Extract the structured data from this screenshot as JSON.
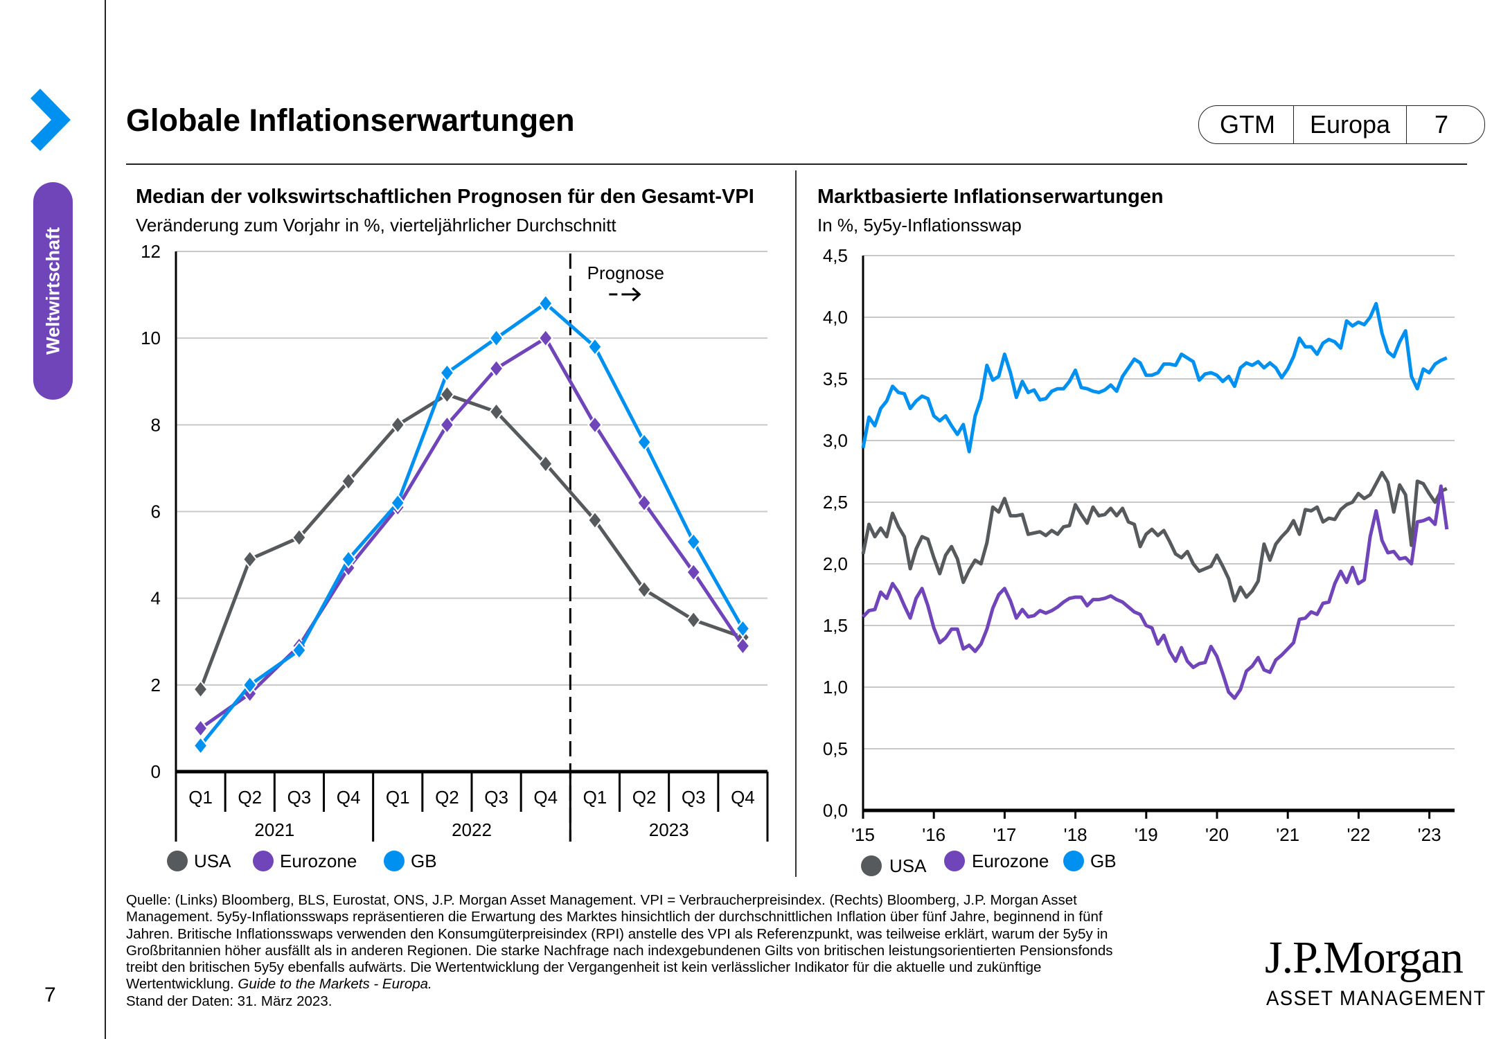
{
  "section_tab": "Weltwirtschaft",
  "page": {
    "title": "Globale Inflationserwartungen",
    "badge": [
      "GTM",
      "Europa",
      "7"
    ],
    "page_number": "7"
  },
  "colors": {
    "usa": "#575a5d",
    "eurozone": "#6f45b9",
    "gb": "#0091f0",
    "accent_chevron": "#0091f0",
    "section_tab": "#6f45b9"
  },
  "chart_data": [
    {
      "type": "line",
      "title": "Median der volkswirtschaftlichen Prognosen für den Gesamt-VPI",
      "subtitle": "Veränderung zum Vorjahr in %, vierteljährlicher Durchschnitt",
      "xlabel": "",
      "ylabel": "",
      "ylim": [
        0,
        12
      ],
      "yticks": [
        "0",
        "2",
        "4",
        "6",
        "8",
        "10",
        "12"
      ],
      "grid": true,
      "categories": [
        "Q1",
        "Q2",
        "Q3",
        "Q4",
        "Q1",
        "Q2",
        "Q3",
        "Q4",
        "Q1",
        "Q2",
        "Q3",
        "Q4"
      ],
      "year_groups": [
        {
          "label": "2021",
          "span": 4
        },
        {
          "label": "2022",
          "span": 4
        },
        {
          "label": "2023",
          "span": 4
        }
      ],
      "forecast_marker": {
        "after_index": 7,
        "label": "Prognose",
        "arrow": "- ->"
      },
      "marker": "diamond",
      "series": [
        {
          "name": "USA",
          "color_key": "usa",
          "values": [
            1.9,
            4.9,
            5.4,
            6.7,
            8.0,
            8.7,
            8.3,
            7.1,
            5.8,
            4.2,
            3.5,
            3.1
          ]
        },
        {
          "name": "Eurozone",
          "color_key": "eurozone",
          "values": [
            1.0,
            1.8,
            2.9,
            4.7,
            6.1,
            8.0,
            9.3,
            10.0,
            8.0,
            6.2,
            4.6,
            2.9
          ]
        },
        {
          "name": "GB",
          "color_key": "gb",
          "values": [
            0.6,
            2.0,
            2.8,
            4.9,
            6.2,
            9.2,
            10.0,
            10.8,
            9.8,
            7.6,
            5.3,
            3.3
          ]
        }
      ],
      "legend": [
        "USA",
        "Eurozone",
        "GB"
      ],
      "legend_position": "bottom-left"
    },
    {
      "type": "line",
      "title": "Marktbasierte Inflationserwartungen",
      "subtitle": "In %, 5y5y-Inflationsswap",
      "xlabel": "",
      "ylabel": "",
      "ylim": [
        0,
        4.5
      ],
      "yticks": [
        "0,0",
        "0,5",
        "1,0",
        "1,5",
        "2,0",
        "2,5",
        "3,0",
        "3,5",
        "4,0",
        "4,5"
      ],
      "xlim": [
        2015.0,
        2023.33
      ],
      "xticks": [
        "'15",
        "'16",
        "'17",
        "'18",
        "'19",
        "'20",
        "'21",
        "'22",
        "'23"
      ],
      "grid": true,
      "x_start": 2015.0,
      "x_step_years": 0.0833,
      "series": [
        {
          "name": "USA",
          "color_key": "usa",
          "values": [
            2.08,
            2.32,
            2.22,
            2.29,
            2.22,
            2.41,
            2.3,
            2.22,
            1.96,
            2.12,
            2.22,
            2.2,
            2.05,
            1.92,
            2.07,
            2.14,
            2.04,
            1.85,
            1.95,
            2.03,
            2.0,
            2.17,
            2.46,
            2.42,
            2.53,
            2.39,
            2.39,
            2.4,
            2.24,
            2.25,
            2.26,
            2.23,
            2.27,
            2.24,
            2.3,
            2.31,
            2.48,
            2.4,
            2.33,
            2.46,
            2.39,
            2.4,
            2.45,
            2.39,
            2.45,
            2.34,
            2.32,
            2.14,
            2.24,
            2.28,
            2.23,
            2.27,
            2.18,
            2.08,
            2.05,
            2.1,
            2.0,
            1.94,
            1.96,
            1.98,
            2.07,
            1.98,
            1.88,
            1.7,
            1.81,
            1.73,
            1.78,
            1.86,
            2.16,
            2.03,
            2.16,
            2.22,
            2.27,
            2.35,
            2.24,
            2.44,
            2.43,
            2.46,
            2.34,
            2.37,
            2.36,
            2.44,
            2.48,
            2.5,
            2.57,
            2.53,
            2.56,
            2.65,
            2.74,
            2.66,
            2.42,
            2.64,
            2.56,
            2.15,
            2.67,
            2.65,
            2.57,
            2.5,
            2.59,
            2.61
          ]
        },
        {
          "name": "Eurozone",
          "color_key": "eurozone",
          "values": [
            1.57,
            1.62,
            1.63,
            1.77,
            1.72,
            1.84,
            1.77,
            1.66,
            1.56,
            1.72,
            1.8,
            1.66,
            1.48,
            1.36,
            1.4,
            1.47,
            1.47,
            1.31,
            1.34,
            1.29,
            1.35,
            1.47,
            1.64,
            1.75,
            1.8,
            1.7,
            1.56,
            1.63,
            1.57,
            1.58,
            1.62,
            1.6,
            1.62,
            1.65,
            1.69,
            1.72,
            1.73,
            1.73,
            1.66,
            1.71,
            1.71,
            1.72,
            1.74,
            1.71,
            1.69,
            1.65,
            1.61,
            1.59,
            1.5,
            1.48,
            1.35,
            1.42,
            1.29,
            1.21,
            1.32,
            1.21,
            1.16,
            1.19,
            1.2,
            1.33,
            1.25,
            1.11,
            0.96,
            0.91,
            0.98,
            1.13,
            1.17,
            1.24,
            1.14,
            1.12,
            1.22,
            1.26,
            1.31,
            1.36,
            1.55,
            1.56,
            1.61,
            1.59,
            1.68,
            1.69,
            1.84,
            1.94,
            1.85,
            1.97,
            1.84,
            1.87,
            2.22,
            2.43,
            2.19,
            2.09,
            2.1,
            2.04,
            2.05,
            2.0,
            2.34,
            2.35,
            2.37,
            2.32,
            2.63,
            2.28
          ]
        },
        {
          "name": "GB",
          "color_key": "gb",
          "values": [
            2.94,
            3.19,
            3.12,
            3.26,
            3.32,
            3.44,
            3.39,
            3.38,
            3.26,
            3.32,
            3.36,
            3.34,
            3.2,
            3.16,
            3.2,
            3.12,
            3.05,
            3.13,
            2.91,
            3.2,
            3.34,
            3.61,
            3.49,
            3.52,
            3.7,
            3.55,
            3.35,
            3.48,
            3.39,
            3.41,
            3.33,
            3.34,
            3.4,
            3.42,
            3.42,
            3.48,
            3.57,
            3.43,
            3.42,
            3.4,
            3.39,
            3.41,
            3.45,
            3.4,
            3.52,
            3.59,
            3.66,
            3.63,
            3.53,
            3.53,
            3.55,
            3.62,
            3.62,
            3.61,
            3.7,
            3.67,
            3.64,
            3.49,
            3.54,
            3.55,
            3.53,
            3.48,
            3.52,
            3.44,
            3.59,
            3.63,
            3.61,
            3.64,
            3.59,
            3.63,
            3.59,
            3.51,
            3.58,
            3.68,
            3.83,
            3.76,
            3.76,
            3.7,
            3.79,
            3.82,
            3.8,
            3.75,
            3.97,
            3.93,
            3.96,
            3.94,
            4.0,
            4.11,
            3.87,
            3.72,
            3.68,
            3.8,
            3.89,
            3.52,
            3.42,
            3.58,
            3.55,
            3.62,
            3.65,
            3.67
          ]
        }
      ],
      "legend": [
        "USA",
        "Eurozone",
        "GB"
      ],
      "legend_position": "bottom-left"
    }
  ],
  "footnote": {
    "lines": [
      "Quelle: (Links) Bloomberg, BLS, Eurostat, ONS, J.P. Morgan Asset Management. VPI = Verbraucherpreisindex. (Rechts) Bloomberg, J.P. Morgan Asset",
      "Management. 5y5y-Inflationsswaps repräsentieren die Erwartung des Marktes hinsichtlich der durchschnittlichen Inflation über fünf Jahre, beginnend in fünf",
      "Jahren. Britische Inflationsswaps verwenden den Konsumgüterpreisindex (RPI) anstelle des VPI als Referenzpunkt, was teilweise erklärt, warum der 5y5y in",
      "Großbritannien höher ausfällt als in anderen Regionen. Die starke Nachfrage nach indexgebundenen Gilts von britischen leistungsorientierten Pensionsfonds",
      "treibt den britischen 5y5y ebenfalls aufwärts. Die Wertentwicklung der Vergangenheit ist kein verlässlicher Indikator für die aktuelle und zukünftige"
    ],
    "last_line_plain": "Wertentwicklung. ",
    "last_line_italic": "Guide to the Markets - Europa.",
    "date_line": "Stand der Daten: 31. März 2023."
  },
  "logo": {
    "main": "J.P.Morgan",
    "sub": "ASSET MANAGEMENT"
  }
}
